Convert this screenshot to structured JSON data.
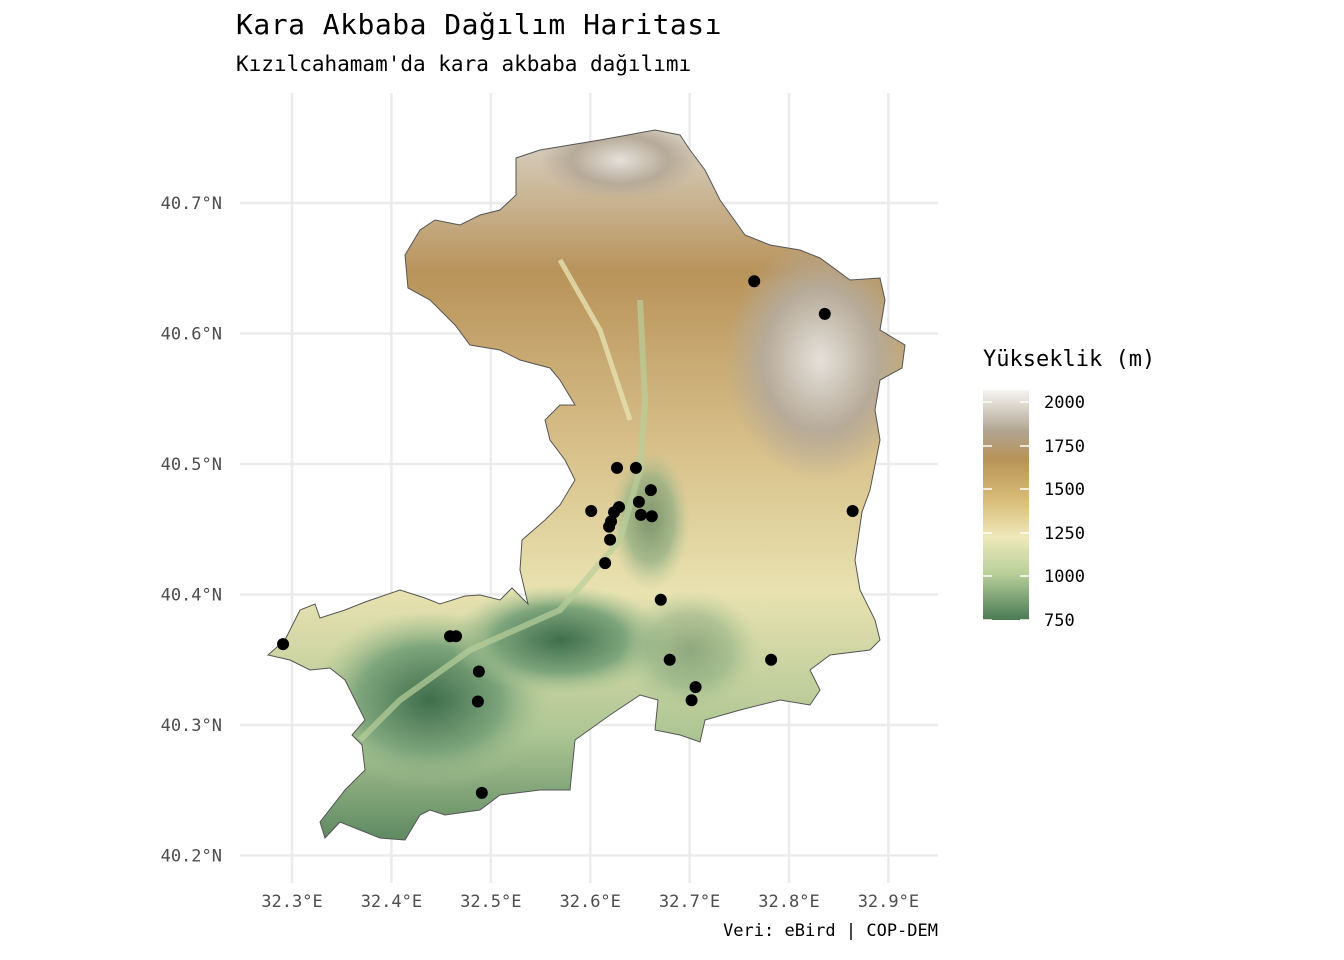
{
  "title": "Kara Akbaba Dağılım Haritası",
  "subtitle": "Kızılcahamam'da kara akbaba dağılımı",
  "caption": "Veri: eBird | COP-DEM",
  "legend": {
    "title": "Yükseklik (m)",
    "labels": [
      "2000",
      "1750",
      "1500",
      "1250",
      "1000",
      "750"
    ],
    "colors": [
      "#f7f5f2",
      "#b0a491",
      "#b89358",
      "#d9bd78",
      "#efe8bb",
      "#b8cf9a",
      "#4a7a55"
    ]
  },
  "axes": {
    "x_labels": [
      "32.3°E",
      "32.4°E",
      "32.5°E",
      "32.6°E",
      "32.7°E",
      "32.8°E",
      "32.9°E"
    ],
    "y_labels": [
      "40.7°N",
      "40.6°N",
      "40.5°N",
      "40.4°N",
      "40.3°N",
      "40.2°N"
    ]
  },
  "chart_data": {
    "type": "scatter",
    "xlim": [
      32.25,
      32.95
    ],
    "ylim": [
      40.19,
      40.78
    ],
    "x_ticks": [
      32.3,
      32.4,
      32.5,
      32.6,
      32.7,
      32.8,
      32.9
    ],
    "y_ticks": [
      40.7,
      40.6,
      40.5,
      40.4,
      40.3,
      40.2
    ],
    "grid": true,
    "legend_position": "right",
    "points": [
      {
        "lon": 32.291,
        "lat": 40.362
      },
      {
        "lon": 32.459,
        "lat": 40.368
      },
      {
        "lon": 32.465,
        "lat": 40.368
      },
      {
        "lon": 32.488,
        "lat": 40.341
      },
      {
        "lon": 32.487,
        "lat": 40.318
      },
      {
        "lon": 32.491,
        "lat": 40.248
      },
      {
        "lon": 32.601,
        "lat": 40.464
      },
      {
        "lon": 32.627,
        "lat": 40.497
      },
      {
        "lon": 32.646,
        "lat": 40.497
      },
      {
        "lon": 32.661,
        "lat": 40.48
      },
      {
        "lon": 32.649,
        "lat": 40.471
      },
      {
        "lon": 32.629,
        "lat": 40.467
      },
      {
        "lon": 32.624,
        "lat": 40.463
      },
      {
        "lon": 32.651,
        "lat": 40.461
      },
      {
        "lon": 32.662,
        "lat": 40.46
      },
      {
        "lon": 32.621,
        "lat": 40.456
      },
      {
        "lon": 32.619,
        "lat": 40.452
      },
      {
        "lon": 32.62,
        "lat": 40.442
      },
      {
        "lon": 32.615,
        "lat": 40.424
      },
      {
        "lon": 32.671,
        "lat": 40.396
      },
      {
        "lon": 32.68,
        "lat": 40.35
      },
      {
        "lon": 32.782,
        "lat": 40.35
      },
      {
        "lon": 32.706,
        "lat": 40.329
      },
      {
        "lon": 32.702,
        "lat": 40.319
      },
      {
        "lon": 32.765,
        "lat": 40.64
      },
      {
        "lon": 32.836,
        "lat": 40.615
      },
      {
        "lon": 32.864,
        "lat": 40.464
      }
    ]
  }
}
